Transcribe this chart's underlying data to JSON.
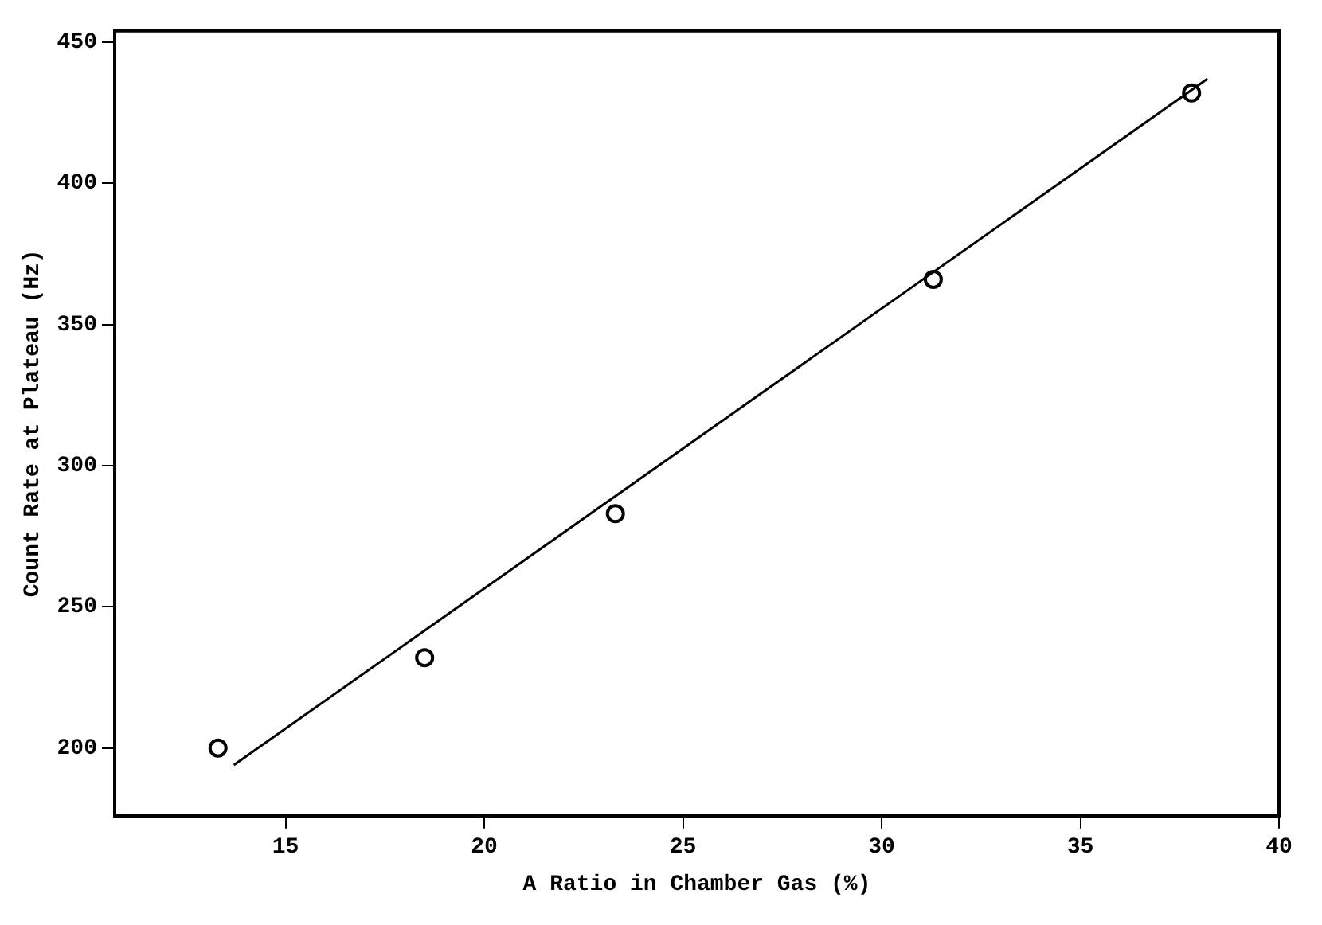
{
  "chart_data": {
    "type": "scatter",
    "xlabel": "A Ratio in Chamber Gas (%)",
    "ylabel": "Count Rate at Plateau (Hz)",
    "xlim": [
      10.7,
      40
    ],
    "xticks": [
      15,
      20,
      25,
      30,
      35,
      40
    ],
    "ylim": [
      176,
      454
    ],
    "yticks": [
      200,
      250,
      300,
      350,
      400,
      450
    ],
    "grid": false,
    "legend": false,
    "marker": "circle",
    "series": [
      {
        "type": "scatter",
        "color": "#000000",
        "x": [
          13.3,
          18.5,
          23.3,
          31.3,
          37.8
        ],
        "values": [
          200,
          232,
          283,
          366,
          432
        ]
      },
      {
        "type": "line",
        "color": "#000000",
        "marker": "none",
        "line_style": "solid",
        "x": [
          13.7,
          38.2
        ],
        "values": [
          194,
          437
        ]
      }
    ]
  }
}
